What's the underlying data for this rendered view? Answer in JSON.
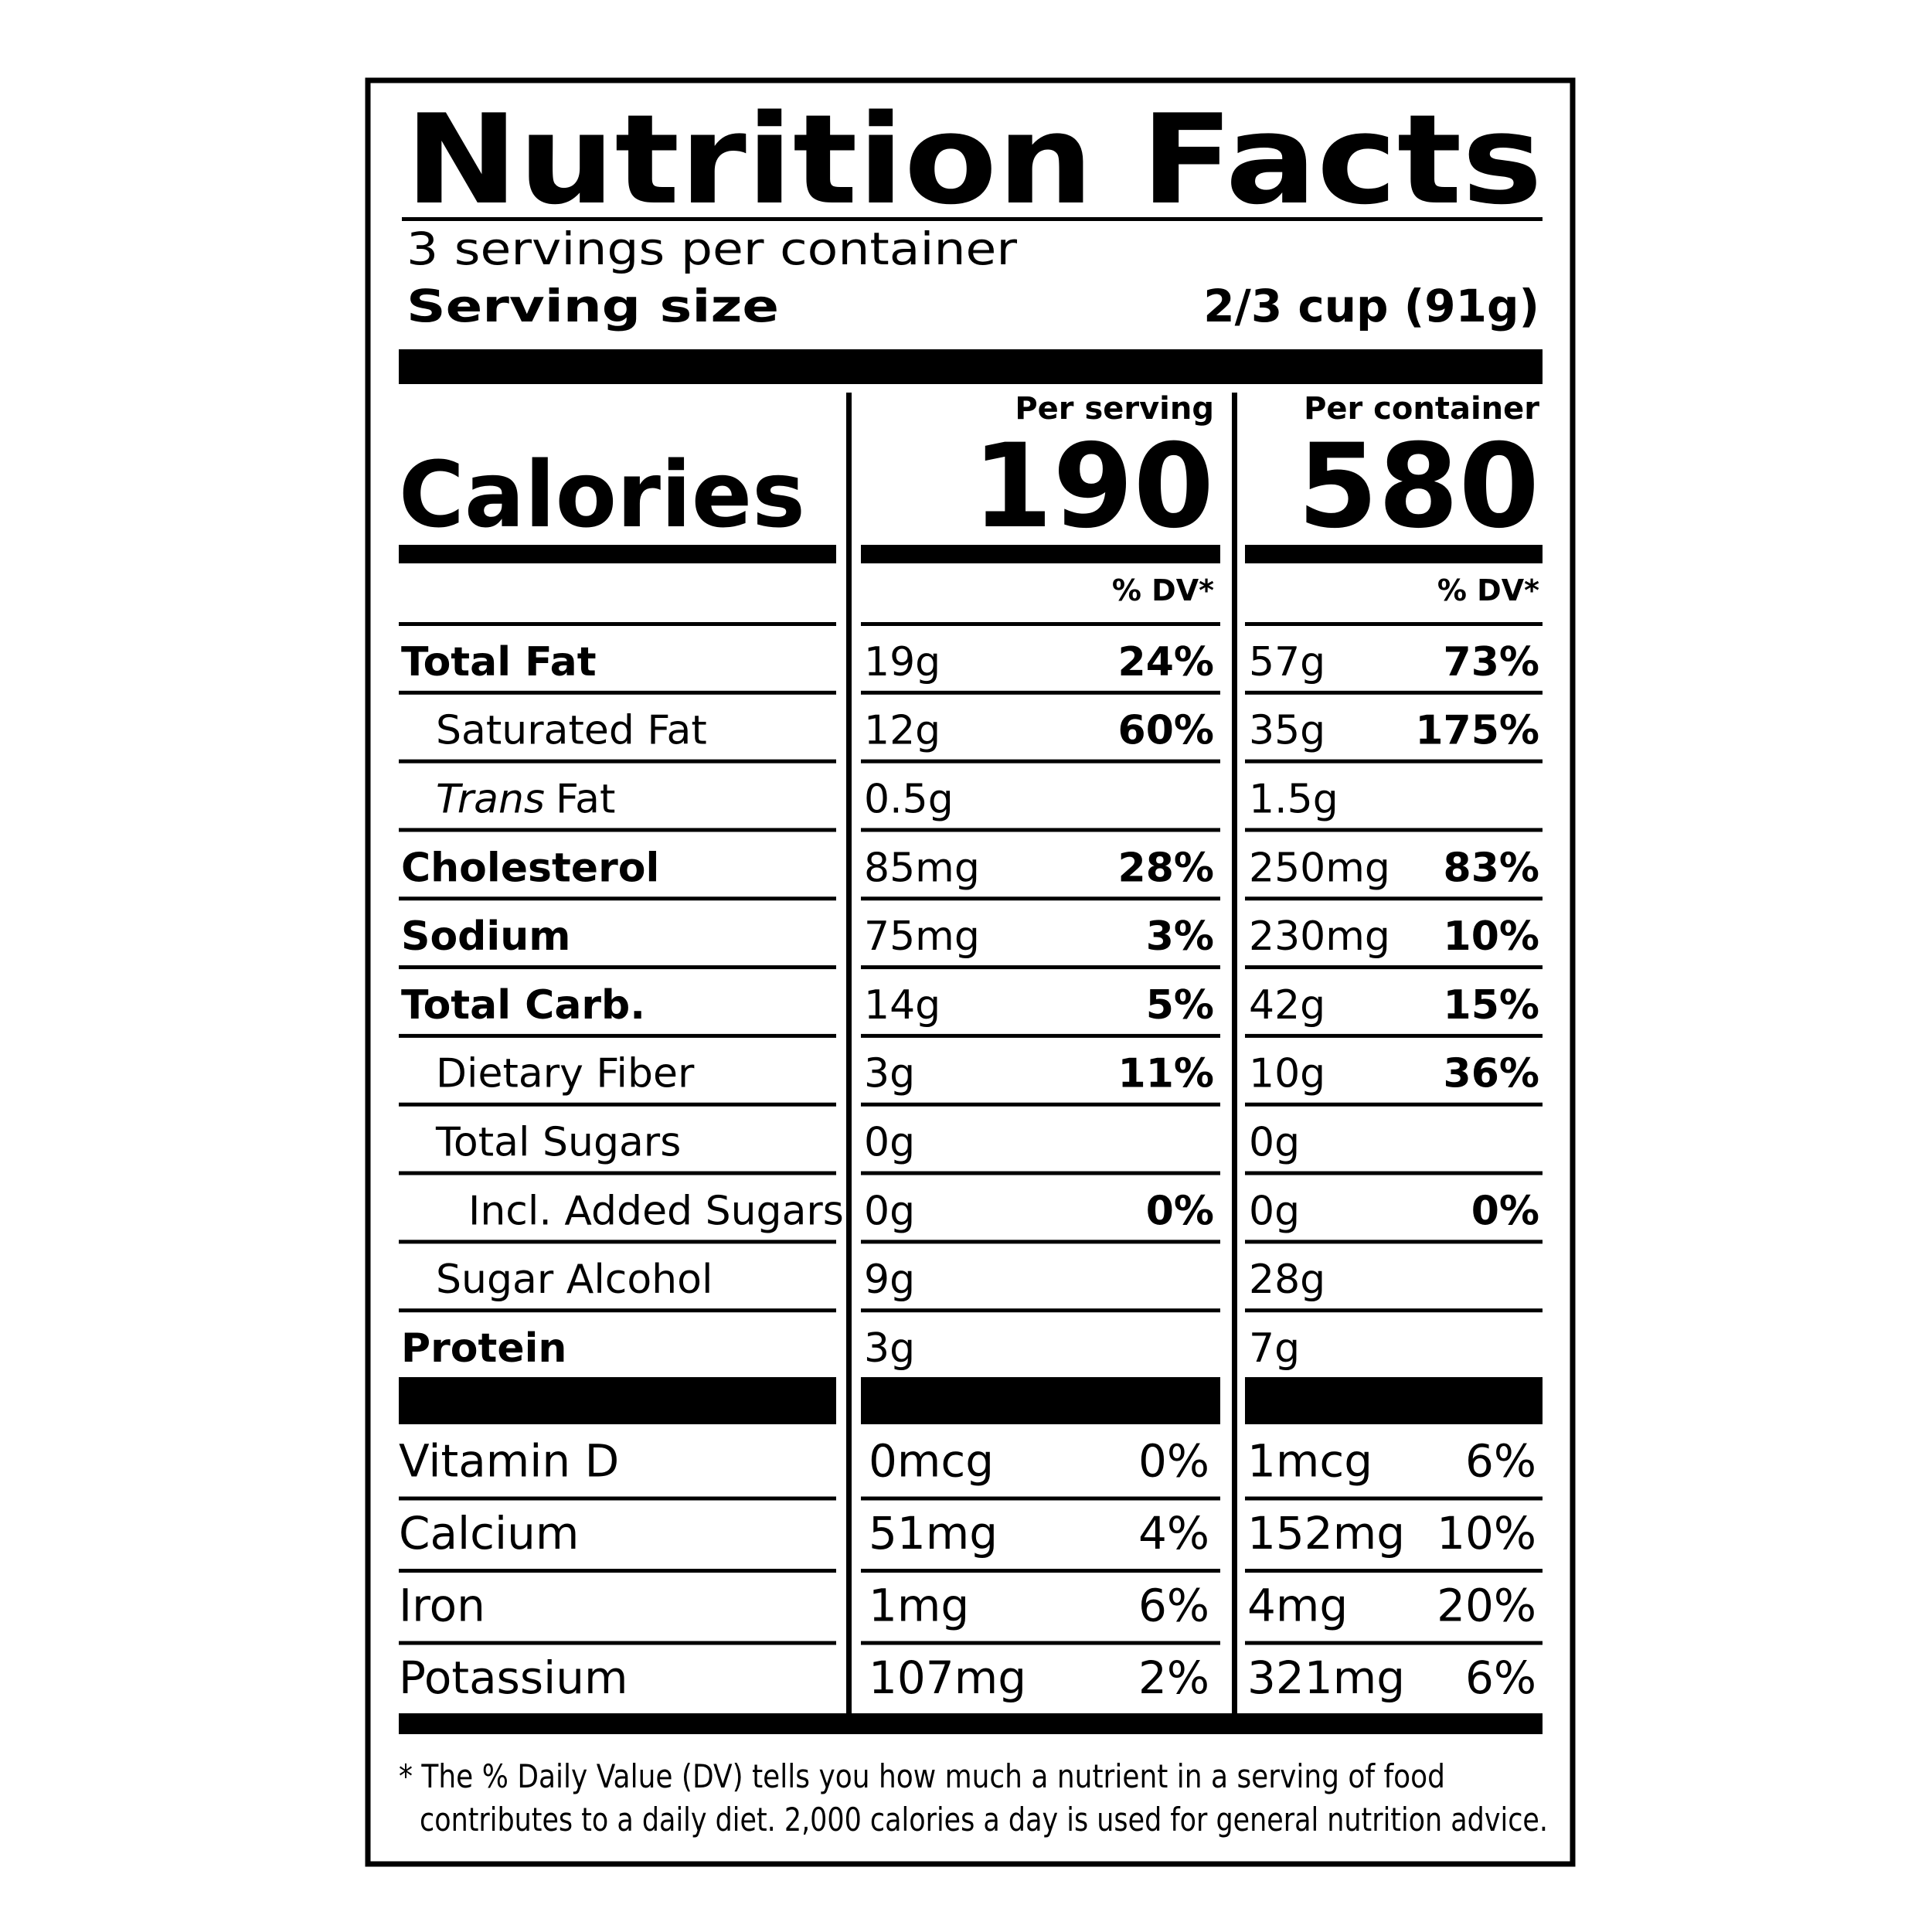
{
  "title": "Nutrition Facts",
  "servings": "3 servings per container",
  "serving_size": {
    "label": "Serving size",
    "value": "2/3 cup (91g)"
  },
  "calories": {
    "label": "Calories",
    "per_serving_header": "Per serving",
    "per_serving": "190",
    "per_container_header": "Per container",
    "per_container": "580"
  },
  "dv_header": [
    "% DV*",
    "% DV*"
  ],
  "nutrients": [
    {
      "name": "Total Fat",
      "bold": true,
      "indent": 0,
      "serving": "19g",
      "serving_dv": "24%",
      "container": "57g",
      "container_dv": "73%"
    },
    {
      "name": "Saturated Fat",
      "bold": false,
      "indent": 1,
      "serving": "12g",
      "serving_dv": "60%",
      "container": "35g",
      "container_dv": "175%"
    },
    {
      "italic": "Trans",
      "name": "Fat",
      "bold": false,
      "indent": 1,
      "serving": "0.5g",
      "container": "1.5g"
    },
    {
      "name": "Cholesterol",
      "bold": true,
      "indent": 0,
      "serving": "85mg",
      "serving_dv": "28%",
      "container": "250mg",
      "container_dv": "83%"
    },
    {
      "name": "Sodium",
      "bold": true,
      "indent": 0,
      "serving": "75mg",
      "serving_dv": "3%",
      "container": "230mg",
      "container_dv": "10%"
    },
    {
      "name": "Total Carb.",
      "bold": true,
      "indent": 0,
      "serving": "14g",
      "serving_dv": "5%",
      "container": "42g",
      "container_dv": "15%"
    },
    {
      "name": "Dietary Fiber",
      "bold": false,
      "indent": 1,
      "serving": "3g",
      "serving_dv": "11%",
      "container": "10g",
      "container_dv": "36%"
    },
    {
      "name": "Total Sugars",
      "bold": false,
      "indent": 1,
      "serving": "0g",
      "container": "0g"
    },
    {
      "name": "Incl. Added Sugars",
      "bold": false,
      "indent": 2,
      "serving": "0g",
      "serving_dv": "0%",
      "container": "0g",
      "container_dv": "0%"
    },
    {
      "name": "Sugar Alcohol",
      "bold": false,
      "indent": 1,
      "serving": "9g",
      "container": "28g"
    },
    {
      "name": "Protein",
      "bold": true,
      "indent": 0,
      "serving": "3g",
      "container": "7g"
    }
  ],
  "vitamins": [
    {
      "name": "Vitamin D",
      "serving": "0mcg",
      "serving_dv": "0%",
      "container": "1mcg",
      "container_dv": "6%"
    },
    {
      "name": "Calcium",
      "serving": "51mg",
      "serving_dv": "4%",
      "container": "152mg",
      "container_dv": "10%"
    },
    {
      "name": "Iron",
      "serving": "1mg",
      "serving_dv": "6%",
      "container": "4mg",
      "container_dv": "20%"
    },
    {
      "name": "Potassium",
      "serving": "107mg",
      "serving_dv": "2%",
      "container": "321mg",
      "container_dv": "6%"
    }
  ],
  "footnote": [
    "* The % Daily Value (DV) tells you how much a nutrient in a serving of food",
    "contributes to a daily diet. 2,000 calories a day is used for general nutrition advice."
  ]
}
